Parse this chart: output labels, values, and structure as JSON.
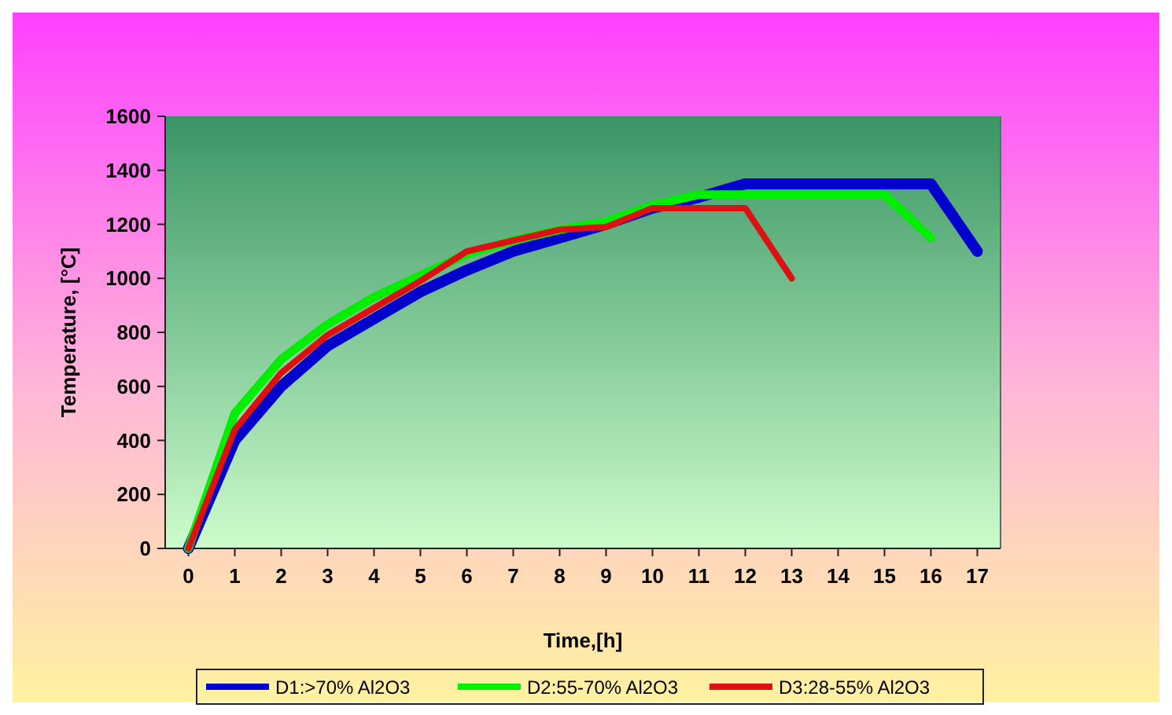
{
  "chart_data": {
    "type": "line",
    "xlabel": "Time,[h]",
    "ylabel": "Temperature, [°C]",
    "x": [
      0,
      1,
      2,
      3,
      4,
      5,
      6,
      7,
      8,
      9,
      10,
      11,
      12,
      13,
      14,
      15,
      16,
      17
    ],
    "xlim": [
      -0.5,
      17.5
    ],
    "xticks": [
      0,
      1,
      2,
      3,
      4,
      5,
      6,
      7,
      8,
      9,
      10,
      11,
      12,
      13,
      14,
      15,
      16,
      17
    ],
    "ylim": [
      0,
      1600
    ],
    "yticks": [
      0,
      200,
      400,
      600,
      800,
      1000,
      1200,
      1400,
      1600
    ],
    "grid": false,
    "legend": "bottom",
    "marker": "none",
    "line_style": "solid",
    "series": [
      {
        "name": "D1:>70% Al2O3",
        "color": "#0000cc",
        "values": [
          0,
          400,
          600,
          750,
          850,
          950,
          1030,
          1100,
          1150,
          1200,
          1260,
          1300,
          1350,
          1350,
          1350,
          1350,
          1350,
          1100
        ]
      },
      {
        "name": "D2:55-70% Al2O3",
        "color": "#00ee00",
        "values": [
          0,
          500,
          700,
          830,
          930,
          1010,
          1090,
          1140,
          1180,
          1210,
          1270,
          1310,
          1310,
          1310,
          1310,
          1310,
          1150,
          null
        ]
      },
      {
        "name": "D3:28-55% Al2O3",
        "color": "#dd1111",
        "values": [
          0,
          440,
          650,
          790,
          890,
          990,
          1100,
          1140,
          1180,
          1190,
          1260,
          1260,
          1260,
          1000,
          null,
          null,
          null,
          null
        ]
      }
    ]
  }
}
